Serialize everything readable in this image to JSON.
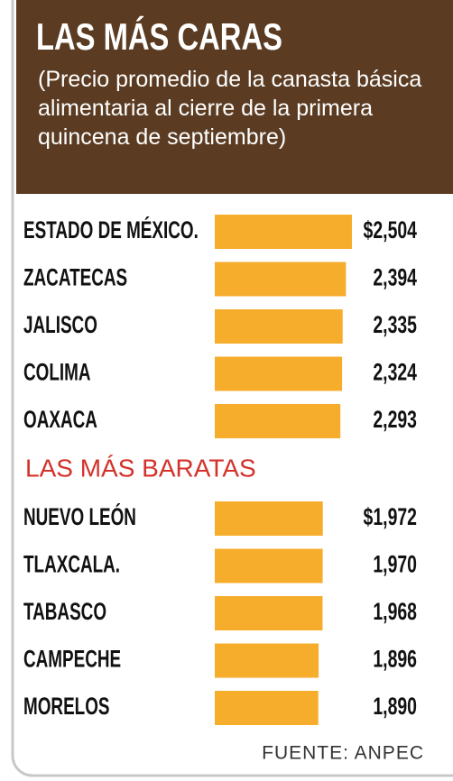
{
  "title": "LAS MÁS CARAS",
  "subtitle": "(Precio promedio de la canasta básica alimentaria al cierre de la primera quincena de septiembre)",
  "chart_data": [
    {
      "type": "bar",
      "orientation": "horizontal",
      "categories": [
        "ESTADO DE MÉXICO.",
        "ZACATECAS",
        "JALISCO",
        "COLIMA",
        "OAXACA"
      ],
      "values": [
        2504,
        2394,
        2335,
        2324,
        2293
      ],
      "value_labels": [
        "$2,504",
        "2,394",
        "2,335",
        "2,324",
        "2,293"
      ],
      "color": "#f6ad2b"
    },
    {
      "type": "bar",
      "orientation": "horizontal",
      "title": "LAS MÁS BARATAS",
      "title_color": "#d3322b",
      "categories": [
        "NUEVO LEÓN",
        "TLAXCALA.",
        "TABASCO",
        "CAMPECHE",
        "MORELOS"
      ],
      "values": [
        1972,
        1970,
        1968,
        1896,
        1890
      ],
      "value_labels": [
        "$1,972",
        "1,970",
        "1,968",
        "1,896",
        "1,890"
      ],
      "color": "#f6ad2b"
    }
  ],
  "source": "FUENTE: ANPEC"
}
